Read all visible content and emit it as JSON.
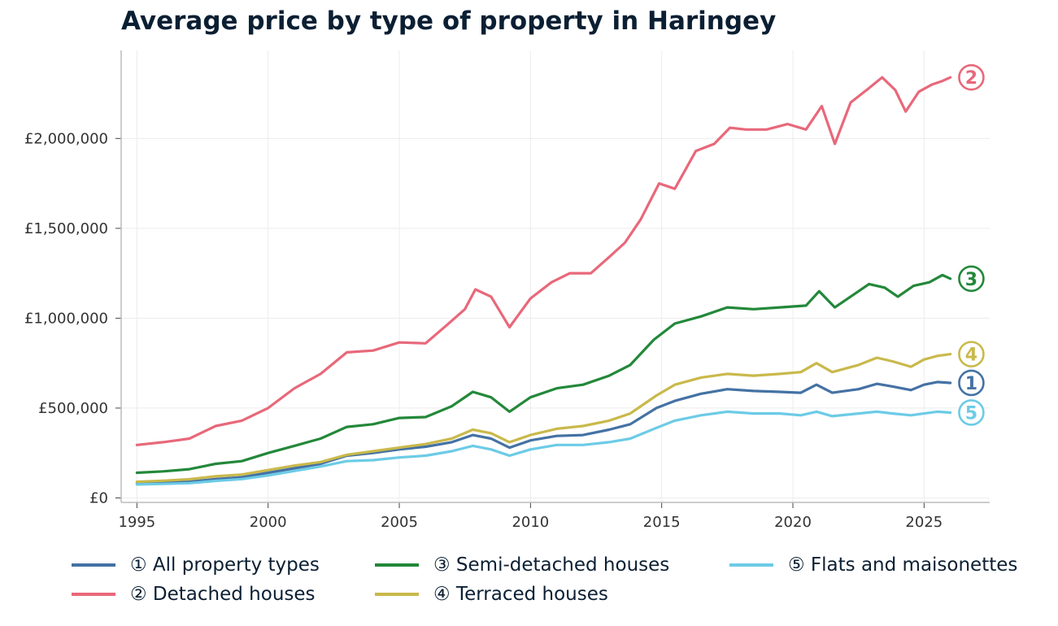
{
  "title": "Average price by type of property in Haringey",
  "chart_data": {
    "type": "line",
    "title": "Average price by type of property in Haringey",
    "xlabel": "",
    "ylabel": "",
    "xlim": [
      1994.4,
      2027.5
    ],
    "ylim": [
      -25000,
      2490000
    ],
    "x_ticks": [
      1995,
      2000,
      2005,
      2010,
      2015,
      2020,
      2025
    ],
    "x_tick_labels": [
      "1995",
      "2000",
      "2005",
      "2010",
      "2015",
      "2020",
      "2025"
    ],
    "y_ticks": [
      0,
      500000,
      1000000,
      1500000,
      2000000
    ],
    "y_tick_labels": [
      "£0",
      "£500,000",
      "£1,000,000",
      "£1,500,000",
      "£2,000,000"
    ],
    "grid": true,
    "legend_position": "bottom",
    "series": [
      {
        "name": "① All property types",
        "marker": "1",
        "color": "#4472a4",
        "x": [
          1995,
          1996,
          1997,
          1998,
          1999,
          2000,
          2001,
          2002,
          2003,
          2004,
          2005,
          2006,
          2007,
          2007.8,
          2008.5,
          2009.2,
          2010,
          2011,
          2012,
          2013,
          2013.8,
          2014.8,
          2015.5,
          2016.5,
          2017.5,
          2018.5,
          2019.5,
          2020.3,
          2020.9,
          2021.5,
          2022.5,
          2023.2,
          2023.8,
          2024.5,
          2025,
          2025.5,
          2026
        ],
        "values": [
          80000,
          85000,
          90000,
          105000,
          115000,
          140000,
          165000,
          190000,
          235000,
          250000,
          270000,
          285000,
          310000,
          350000,
          330000,
          280000,
          320000,
          345000,
          350000,
          380000,
          410000,
          500000,
          540000,
          580000,
          605000,
          595000,
          590000,
          585000,
          630000,
          585000,
          605000,
          635000,
          620000,
          600000,
          630000,
          645000,
          640000
        ]
      },
      {
        "name": "② Detached houses",
        "marker": "2",
        "color": "#e8687a",
        "x": [
          1995,
          1996,
          1997,
          1998,
          1999,
          2000,
          2001,
          2002,
          2003,
          2004,
          2005,
          2006,
          2006.8,
          2007.5,
          2007.9,
          2008.5,
          2009.2,
          2010,
          2010.8,
          2011.5,
          2012.3,
          2013,
          2013.6,
          2014.2,
          2014.9,
          2015.5,
          2016.3,
          2017,
          2017.6,
          2018.2,
          2019,
          2019.8,
          2020.5,
          2021.1,
          2021.6,
          2022.2,
          2022.9,
          2023.4,
          2023.9,
          2024.3,
          2024.8,
          2025.3,
          2025.7,
          2026
        ],
        "values": [
          295000,
          310000,
          330000,
          400000,
          430000,
          500000,
          610000,
          690000,
          810000,
          820000,
          865000,
          860000,
          960000,
          1050000,
          1160000,
          1120000,
          950000,
          1110000,
          1200000,
          1250000,
          1250000,
          1340000,
          1420000,
          1550000,
          1750000,
          1720000,
          1930000,
          1970000,
          2060000,
          2050000,
          2050000,
          2080000,
          2050000,
          2180000,
          1970000,
          2200000,
          2280000,
          2340000,
          2270000,
          2150000,
          2260000,
          2300000,
          2320000,
          2340000
        ]
      },
      {
        "name": "③ Semi-detached houses",
        "marker": "3",
        "color": "#23883a",
        "x": [
          1995,
          1996,
          1997,
          1998,
          1999,
          2000,
          2001,
          2002,
          2003,
          2004,
          2005,
          2006,
          2007,
          2007.8,
          2008.5,
          2009.2,
          2010,
          2011,
          2012,
          2013,
          2013.8,
          2014.7,
          2015.5,
          2016.5,
          2017.5,
          2018.5,
          2019.5,
          2020.5,
          2021,
          2021.6,
          2022.3,
          2022.9,
          2023.5,
          2024,
          2024.6,
          2025.2,
          2025.7,
          2026
        ],
        "values": [
          140000,
          148000,
          160000,
          190000,
          205000,
          250000,
          290000,
          330000,
          395000,
          410000,
          445000,
          450000,
          510000,
          590000,
          560000,
          480000,
          560000,
          610000,
          630000,
          680000,
          740000,
          880000,
          970000,
          1010000,
          1060000,
          1050000,
          1060000,
          1070000,
          1150000,
          1060000,
          1130000,
          1190000,
          1170000,
          1120000,
          1180000,
          1200000,
          1240000,
          1220000
        ]
      },
      {
        "name": "④ Terraced houses",
        "marker": "4",
        "color": "#c9b94b",
        "x": [
          1995,
          1996,
          1997,
          1998,
          1999,
          2000,
          2001,
          2002,
          2003,
          2004,
          2005,
          2006,
          2007,
          2007.8,
          2008.5,
          2009.2,
          2010,
          2011,
          2012,
          2013,
          2013.8,
          2014.8,
          2015.5,
          2016.5,
          2017.5,
          2018.5,
          2019.5,
          2020.3,
          2020.9,
          2021.5,
          2022.5,
          2023.2,
          2023.8,
          2024.5,
          2025,
          2025.5,
          2026
        ],
        "values": [
          90000,
          96000,
          104000,
          120000,
          130000,
          155000,
          180000,
          200000,
          240000,
          260000,
          280000,
          300000,
          330000,
          380000,
          360000,
          310000,
          350000,
          385000,
          400000,
          430000,
          470000,
          570000,
          630000,
          670000,
          690000,
          680000,
          690000,
          700000,
          750000,
          700000,
          740000,
          780000,
          760000,
          730000,
          770000,
          790000,
          800000
        ]
      },
      {
        "name": "⑤ Flats and maisonettes",
        "marker": "5",
        "color": "#6ccbe6",
        "x": [
          1995,
          1996,
          1997,
          1998,
          1999,
          2000,
          2001,
          2002,
          2003,
          2004,
          2005,
          2006,
          2007,
          2007.8,
          2008.5,
          2009.2,
          2010,
          2011,
          2012,
          2013,
          2013.8,
          2014.8,
          2015.5,
          2016.5,
          2017.5,
          2018.5,
          2019.5,
          2020.3,
          2020.9,
          2021.5,
          2022.5,
          2023.2,
          2023.8,
          2024.5,
          2025,
          2025.5,
          2026
        ],
        "values": [
          75000,
          78000,
          82000,
          95000,
          105000,
          125000,
          150000,
          175000,
          205000,
          210000,
          225000,
          235000,
          260000,
          290000,
          270000,
          235000,
          270000,
          295000,
          295000,
          310000,
          330000,
          390000,
          430000,
          460000,
          480000,
          470000,
          470000,
          460000,
          480000,
          455000,
          470000,
          480000,
          470000,
          460000,
          470000,
          480000,
          475000
        ]
      }
    ]
  },
  "legend": [
    {
      "label": "① All property types",
      "color": "#4472a4"
    },
    {
      "label": "② Detached houses",
      "color": "#e8687a"
    },
    {
      "label": "③ Semi-detached houses",
      "color": "#23883a"
    },
    {
      "label": "④ Terraced houses",
      "color": "#c9b94b"
    },
    {
      "label": "⑤ Flats and maisonettes",
      "color": "#6ccbe6"
    }
  ]
}
